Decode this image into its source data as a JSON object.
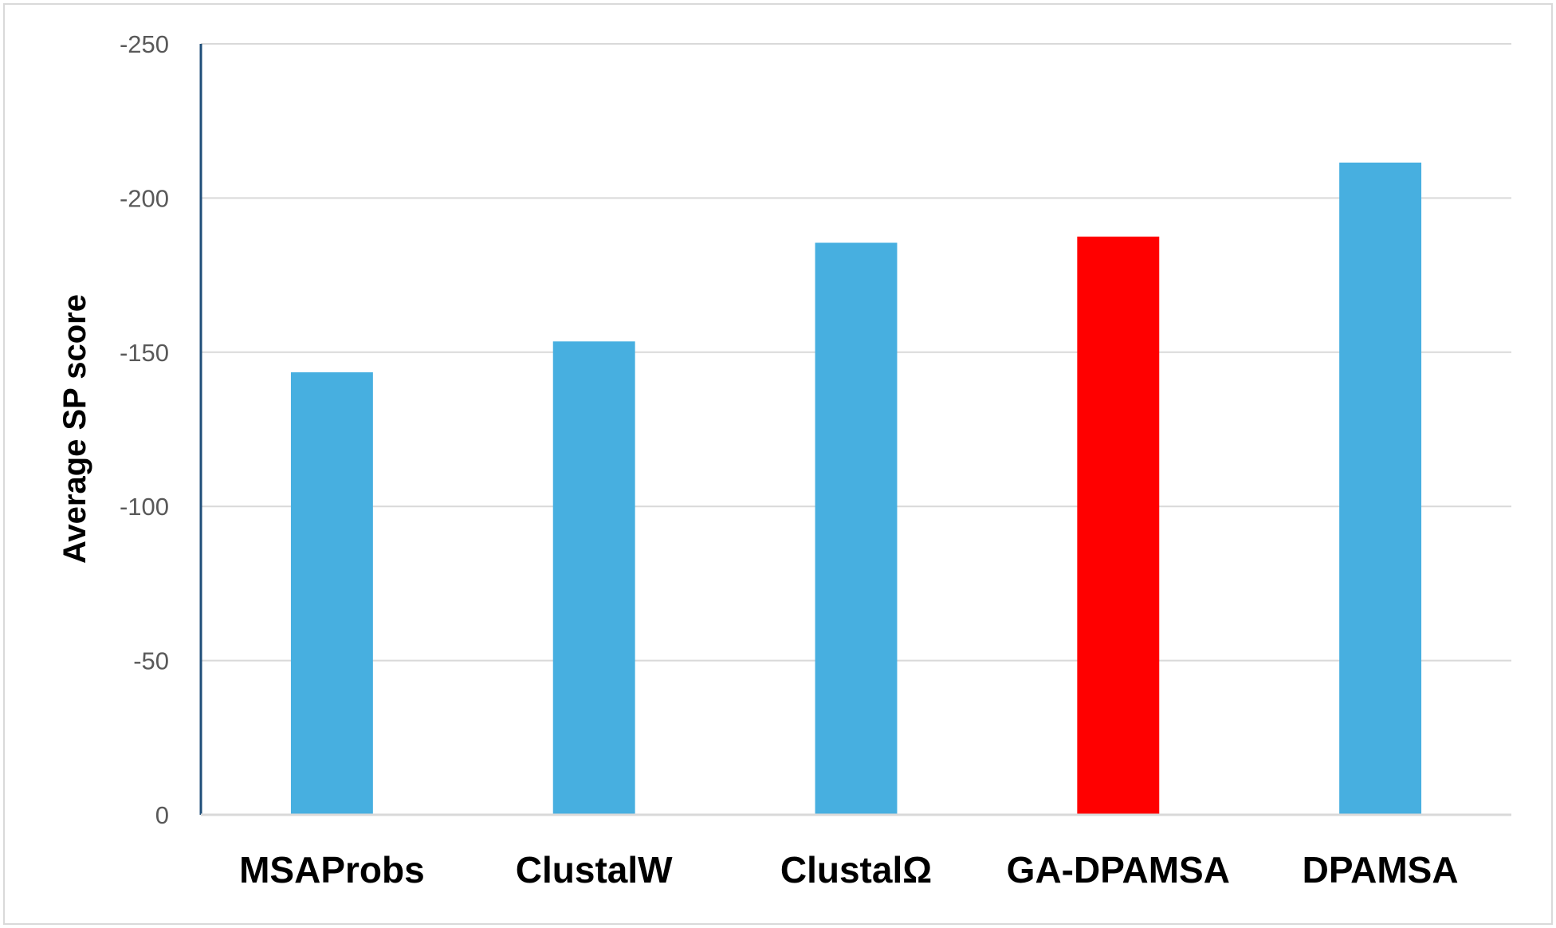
{
  "chart_data": {
    "type": "bar",
    "categories": [
      "MSAProbs",
      "ClustalW",
      "ClustalΩ",
      "GA-DPAMSA",
      "DPAMSA"
    ],
    "values": [
      -143.5,
      -153.5,
      -185.5,
      -187.5,
      -211.5
    ],
    "ylabel": "Average SP score",
    "xlabel": "",
    "ylim": [
      0,
      -250
    ],
    "yticks": [
      0,
      -50,
      -100,
      -150,
      -200,
      -250
    ],
    "ytick_labels": [
      "0",
      "-50",
      "-100",
      "-150",
      "-200",
      "-250"
    ],
    "grid": true,
    "legend": "none",
    "colors": {
      "bar": "#47afe0",
      "highlight": "#ff0000",
      "grid": "#d9d9d9",
      "axis": "#1f4e79"
    },
    "highlight_index": 3
  }
}
